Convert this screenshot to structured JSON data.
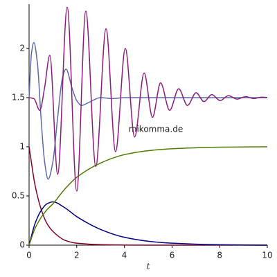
{
  "chart_data": {
    "type": "line",
    "annotation": "mikomma.de",
    "x_label": "t",
    "xlim": [
      0,
      10
    ],
    "ylim": [
      0,
      2.45
    ],
    "xticks": [
      0,
      2,
      4,
      6,
      8,
      10
    ],
    "yticks": [
      0,
      0.5,
      1,
      1.5,
      2
    ],
    "series": [
      {
        "color": "#800020",
        "x": [
          0,
          0.25,
          0.5,
          0.75,
          1,
          1.5,
          2,
          3,
          4,
          5,
          6,
          8,
          10
        ],
        "values": [
          1,
          0.61,
          0.37,
          0.22,
          0.14,
          0.05,
          0.02,
          0.005,
          0.001,
          0,
          0,
          0,
          0
        ]
      },
      {
        "color": "#000080",
        "x": [
          0,
          0.25,
          0.5,
          0.75,
          1,
          1.5,
          2,
          3,
          4,
          5,
          6,
          8,
          10
        ],
        "values": [
          0,
          0.22,
          0.35,
          0.42,
          0.44,
          0.38,
          0.29,
          0.16,
          0.08,
          0.04,
          0.02,
          0.004,
          0
        ]
      },
      {
        "color": "#4d7a00",
        "x": [
          0,
          0.25,
          0.5,
          0.75,
          1,
          1.5,
          2,
          3,
          4,
          5,
          6,
          8,
          10
        ],
        "values": [
          0,
          0.17,
          0.28,
          0.36,
          0.42,
          0.57,
          0.69,
          0.835,
          0.92,
          0.96,
          0.98,
          0.996,
          1
        ]
      },
      {
        "color": "#5a6aa8",
        "x": [
          0,
          0.1,
          0.2,
          0.35,
          0.5,
          0.65,
          0.8,
          1.0,
          1.2,
          1.4,
          1.55,
          1.8,
          2.0,
          2.2,
          2.5,
          3,
          3.5,
          4,
          10
        ],
        "values": [
          1.5,
          1.95,
          2.06,
          1.85,
          1.3,
          0.85,
          0.67,
          0.85,
          1.3,
          1.7,
          1.79,
          1.6,
          1.47,
          1.42,
          1.45,
          1.5,
          1.49,
          1.5,
          1.5
        ]
      },
      {
        "color": "#8c1c7c",
        "x": [
          0,
          0.2,
          0.45,
          0.65,
          0.87,
          1.2,
          1.6,
          2.0,
          2.38,
          2.8,
          3.23,
          3.63,
          4.04,
          4.43,
          4.83,
          5.18,
          5.52,
          5.9,
          6.28,
          6.65,
          7.01,
          7.34,
          7.67,
          8.02,
          8.37,
          8.73,
          9.1,
          9.43,
          9.77,
          10
        ],
        "values": [
          1.5,
          1.49,
          1.37,
          1.6,
          1.93,
          0.72,
          2.42,
          0.55,
          2.38,
          0.8,
          2.2,
          0.95,
          2.0,
          1.1,
          1.75,
          1.3,
          1.65,
          1.37,
          1.59,
          1.42,
          1.55,
          1.46,
          1.53,
          1.47,
          1.52,
          1.485,
          1.51,
          1.49,
          1.505,
          1.5
        ]
      }
    ]
  }
}
